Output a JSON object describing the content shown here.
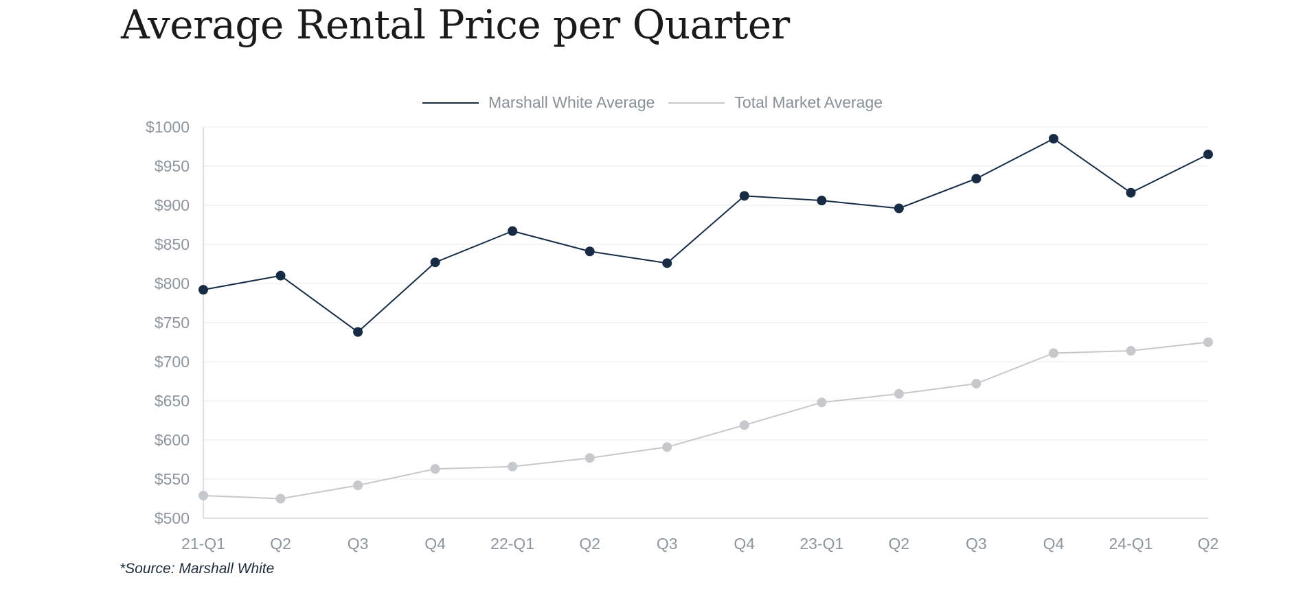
{
  "chart_data": {
    "type": "line",
    "title": "Average Rental Price per Quarter",
    "categories": [
      "21-Q1",
      "Q2",
      "Q3",
      "Q4",
      "22-Q1",
      "Q2",
      "Q3",
      "Q4",
      "23-Q1",
      "Q2",
      "Q3",
      "Q4",
      "24-Q1",
      "Q2"
    ],
    "series": [
      {
        "name": "Marshall White Average",
        "color": "#172c44",
        "values": [
          792,
          810,
          738,
          827,
          867,
          841,
          826,
          912,
          906,
          896,
          934,
          985,
          916,
          965
        ]
      },
      {
        "name": "Total Market Average",
        "color": "#c6c8cc",
        "values": [
          529,
          525,
          542,
          563,
          566,
          577,
          591,
          619,
          648,
          659,
          672,
          711,
          714,
          725
        ]
      }
    ],
    "y_ticks": [
      "$500",
      "$550",
      "$600",
      "$650",
      "$700",
      "$750",
      "$800",
      "$850",
      "$900",
      "$950",
      "$1000"
    ],
    "ylim": [
      500,
      1000
    ],
    "grid": true,
    "legend_position": "top-center",
    "xlabel": "",
    "ylabel": ""
  },
  "source_note": "*Source: Marshall White"
}
